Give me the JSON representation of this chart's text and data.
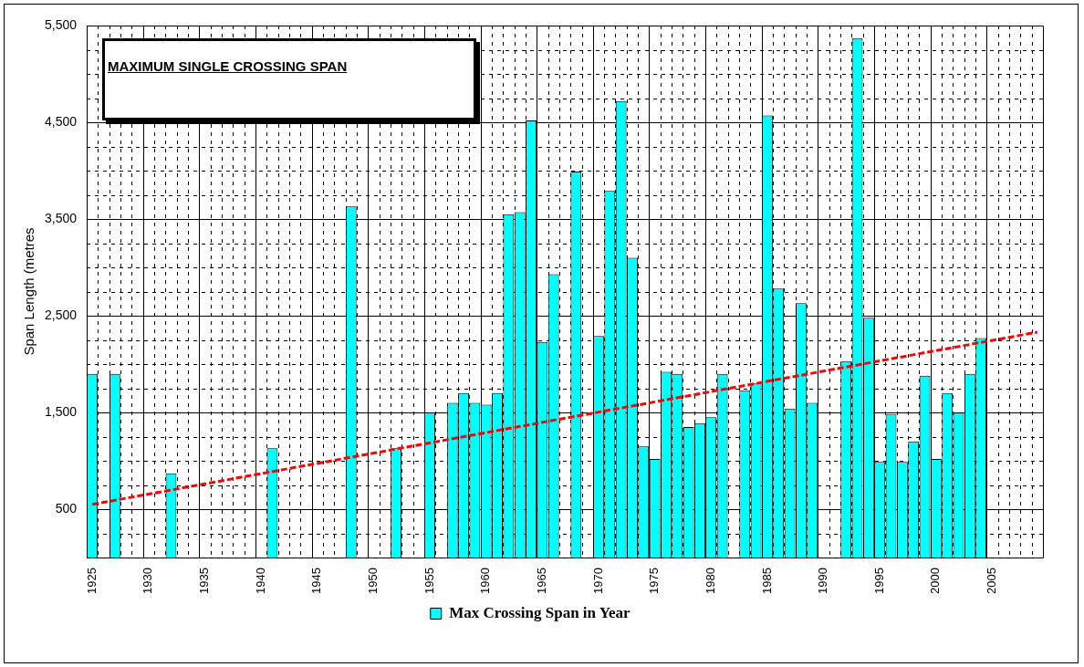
{
  "chart_data": {
    "type": "bar",
    "title": "MAXIMUM SINGLE CROSSING SPAN",
    "ylabel": "Span Length (metres",
    "categories": [
      "1925",
      null,
      null,
      null,
      null,
      "1930",
      null,
      null,
      null,
      null,
      "1935",
      null,
      null,
      null,
      null,
      "1940",
      null,
      null,
      null,
      null,
      "1945",
      null,
      null,
      null,
      null,
      "1950",
      null,
      null,
      null,
      null,
      "1955",
      null,
      null,
      null,
      null,
      "1960",
      null,
      null,
      null,
      null,
      "1965",
      null,
      null,
      null,
      null,
      "1970",
      null,
      null,
      null,
      null,
      "1975",
      null,
      null,
      null,
      null,
      "1980",
      null,
      null,
      null,
      null,
      "1985",
      null,
      null,
      null,
      null,
      "1990",
      null,
      null,
      null,
      null,
      "1995",
      null,
      null,
      null,
      null,
      "2000",
      null,
      null,
      null,
      null,
      "2005",
      null,
      null,
      null,
      null
    ],
    "series": [
      {
        "name": "Max Crossing Span in Year",
        "color": "#00ffff",
        "values": [
          1900,
          null,
          1900,
          null,
          null,
          null,
          null,
          870,
          null,
          null,
          null,
          null,
          null,
          null,
          null,
          null,
          1130,
          null,
          null,
          null,
          null,
          null,
          null,
          3630,
          null,
          null,
          null,
          1130,
          null,
          null,
          1500,
          null,
          1600,
          1700,
          1600,
          1580,
          1700,
          3550,
          3570,
          4520,
          2230,
          2930,
          null,
          3990,
          null,
          2290,
          3790,
          4720,
          3100,
          1150,
          1020,
          1920,
          1900,
          1350,
          1390,
          1450,
          1900,
          null,
          1730,
          1800,
          4570,
          2780,
          1540,
          2630,
          1600,
          null,
          null,
          2030,
          5370,
          2480,
          990,
          1480,
          990,
          1200,
          1880,
          1020,
          1700,
          1500,
          1900,
          2270,
          null,
          null,
          null,
          null,
          null
        ]
      },
      {
        "type": "line",
        "color": "#ff0000",
        "line_style": "dashed",
        "marker": "none",
        "values": [
          550,
          null,
          null,
          null,
          null,
          null,
          null,
          null,
          null,
          null,
          null,
          null,
          null,
          null,
          null,
          null,
          null,
          null,
          null,
          null,
          null,
          null,
          null,
          null,
          null,
          null,
          null,
          null,
          null,
          null,
          null,
          null,
          null,
          null,
          null,
          null,
          null,
          null,
          null,
          null,
          null,
          null,
          null,
          null,
          null,
          null,
          null,
          null,
          null,
          null,
          null,
          null,
          null,
          null,
          null,
          null,
          null,
          null,
          null,
          null,
          null,
          null,
          null,
          null,
          null,
          null,
          null,
          null,
          null,
          null,
          null,
          null,
          null,
          null,
          null,
          null,
          null,
          null,
          null,
          null,
          null,
          null,
          null,
          null,
          2330
        ]
      }
    ],
    "ylim": [
      0,
      5500
    ],
    "yticks": [
      {
        "value": 0,
        "label": null
      },
      {
        "value": 250,
        "label": null
      },
      {
        "value": 500,
        "label": "500"
      },
      {
        "value": 750,
        "label": null
      },
      {
        "value": 1000,
        "label": null
      },
      {
        "value": 1250,
        "label": null
      },
      {
        "value": 1500,
        "label": "1,500"
      },
      {
        "value": 1750,
        "label": null
      },
      {
        "value": 2000,
        "label": null
      },
      {
        "value": 2250,
        "label": null
      },
      {
        "value": 2500,
        "label": "2,500"
      },
      {
        "value": 2750,
        "label": null
      },
      {
        "value": 3000,
        "label": null
      },
      {
        "value": 3250,
        "label": null
      },
      {
        "value": 3500,
        "label": "3,500"
      },
      {
        "value": 3750,
        "label": null
      },
      {
        "value": 4000,
        "label": null
      },
      {
        "value": 4250,
        "label": null
      },
      {
        "value": 4500,
        "label": "4,500"
      },
      {
        "value": 4750,
        "label": null
      },
      {
        "value": 5000,
        "label": null
      },
      {
        "value": 5250,
        "label": null
      },
      {
        "value": 5500,
        "label": "5,500"
      }
    ],
    "grid": true,
    "legend": "bottom"
  }
}
